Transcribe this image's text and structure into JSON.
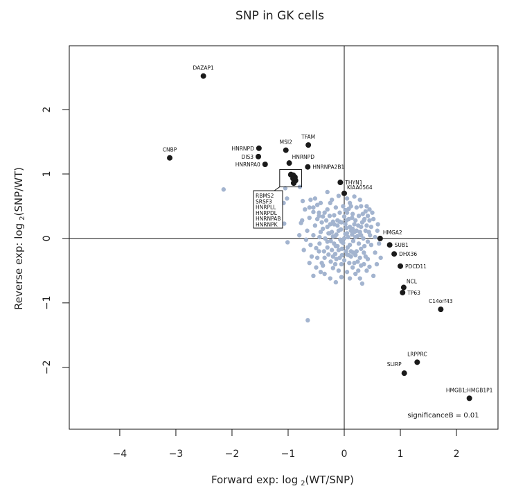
{
  "chart_data": {
    "type": "scatter",
    "title": "SNP in GK cells",
    "xlabel": {
      "main": "Forward exp: log",
      "sub": "2",
      "rest": "(WT/SNP)"
    },
    "ylabel": {
      "main": "Reverse exp: log",
      "sub": "2",
      "rest": "(SNP/WT)"
    },
    "xlim": [
      -4.9,
      2.74
    ],
    "ylim": [
      -2.96,
      2.99
    ],
    "xticks": [
      -4,
      -3,
      -2,
      -1,
      0,
      1,
      2
    ],
    "yticks": [
      -2,
      -1,
      0,
      1,
      2
    ],
    "xtick_labels": [
      "−4",
      "−3",
      "−2",
      "−1",
      "0",
      "1",
      "2"
    ],
    "ytick_labels": [
      "−2",
      "−1",
      "0",
      "1",
      "2"
    ],
    "reference_lines": {
      "x": 0,
      "y": 0
    },
    "annotation": "significanceB = 0.01",
    "colors": {
      "background_points": "#a3b4cf",
      "significant_points": "#1a1a1a",
      "axes": "#111111"
    },
    "significant_points": [
      {
        "label": "DAZAP1",
        "x": -2.51,
        "y": 2.52,
        "label_pos": "above"
      },
      {
        "label": "CNBP",
        "x": -3.11,
        "y": 1.25,
        "label_pos": "above"
      },
      {
        "label": "HNRNPD",
        "x": -1.52,
        "y": 1.4,
        "label_pos": "left"
      },
      {
        "label": "DIS3",
        "x": -1.53,
        "y": 1.27,
        "label_pos": "left"
      },
      {
        "label": "HNRNPA0",
        "x": -1.41,
        "y": 1.15,
        "label_pos": "left"
      },
      {
        "label": "MSI2",
        "x": -1.04,
        "y": 1.37,
        "label_pos": "above"
      },
      {
        "label": "TFAM",
        "x": -0.64,
        "y": 1.45,
        "label_pos": "above"
      },
      {
        "label": "HNRNPD",
        "x": -0.98,
        "y": 1.17,
        "label_pos": "above-right"
      },
      {
        "label": "HNRNPA2B1",
        "x": -0.65,
        "y": 1.11,
        "label_pos": "right"
      },
      {
        "label": "THYN1",
        "x": -0.07,
        "y": 0.87,
        "label_pos": "right"
      },
      {
        "label": "KIAA0564",
        "x": 0.0,
        "y": 0.7,
        "label_pos": "above-right"
      },
      {
        "label": "HMGA2",
        "x": 0.64,
        "y": 0.0,
        "label_pos": "above-right"
      },
      {
        "label": "SUB1",
        "x": 0.81,
        "y": -0.1,
        "label_pos": "right"
      },
      {
        "label": "DHX36",
        "x": 0.89,
        "y": -0.24,
        "label_pos": "right"
      },
      {
        "label": "PDCD11",
        "x": 1.0,
        "y": -0.43,
        "label_pos": "right"
      },
      {
        "label": "NCL",
        "x": 1.06,
        "y": -0.76,
        "label_pos": "above-right"
      },
      {
        "label": "TP63",
        "x": 1.04,
        "y": -0.84,
        "label_pos": "right"
      },
      {
        "label": "C14orf43",
        "x": 1.72,
        "y": -1.1,
        "label_pos": "above"
      },
      {
        "label": "LRPPRC",
        "x": 1.3,
        "y": -1.92,
        "label_pos": "above"
      },
      {
        "label": "SLIRP",
        "x": 1.07,
        "y": -2.09,
        "label_pos": "above-left"
      },
      {
        "label": "HMGB1;HMGB1P1",
        "x": 2.23,
        "y": -2.48,
        "label_pos": "above"
      }
    ],
    "boxed_cluster": {
      "labels": [
        "RBMS2",
        "SRSF3",
        "HNRPLL",
        "HNRPDL",
        "HNRNPAB",
        "HNRNPK"
      ],
      "points": [
        {
          "x": -0.95,
          "y": 0.99
        },
        {
          "x": -0.91,
          "y": 0.98
        },
        {
          "x": -0.88,
          "y": 0.95
        },
        {
          "x": -0.91,
          "y": 0.93
        },
        {
          "x": -0.87,
          "y": 0.9
        },
        {
          "x": -0.9,
          "y": 0.86
        }
      ],
      "box": {
        "x0": -1.15,
        "x1": -0.76,
        "y0": 0.8,
        "y1": 1.07
      }
    },
    "background_points": [
      [
        -2.15,
        0.76
      ],
      [
        -0.65,
        -1.27
      ],
      [
        -1.01,
        -0.06
      ],
      [
        -1.07,
        0.23
      ],
      [
        -0.77,
        0.24
      ],
      [
        -0.74,
        0.58
      ],
      [
        -1.05,
        0.78
      ],
      [
        -0.79,
        0.8
      ],
      [
        0.52,
        -0.58
      ],
      [
        0.59,
        0.12
      ],
      [
        -1.08,
        0.55
      ],
      [
        -1.02,
        0.62
      ],
      [
        -0.62,
        0.48
      ],
      [
        -0.48,
        0.52
      ],
      [
        -0.55,
        0.41
      ],
      [
        -0.45,
        0.35
      ],
      [
        -0.3,
        0.72
      ],
      [
        -0.22,
        0.6
      ],
      [
        0.18,
        0.65
      ],
      [
        0.28,
        0.6
      ],
      [
        0.38,
        0.42
      ],
      [
        0.45,
        0.28
      ],
      [
        0.3,
        -0.42
      ],
      [
        0.42,
        -0.32
      ],
      [
        0.2,
        -0.55
      ],
      [
        -0.35,
        -0.55
      ],
      [
        -0.1,
        -0.5
      ],
      [
        -0.4,
        -0.38
      ],
      [
        0.05,
        -0.52
      ],
      [
        0.25,
        -0.5
      ],
      [
        -0.5,
        -0.15
      ],
      [
        -0.55,
        0.05
      ],
      [
        -0.52,
        0.2
      ],
      [
        -0.42,
        0.1
      ],
      [
        0.48,
        -0.1
      ],
      [
        0.46,
        0.05
      ],
      [
        0.35,
        -0.22
      ],
      [
        -0.3,
        0.45
      ],
      [
        0.1,
        0.55
      ],
      [
        -0.15,
        0.48
      ],
      [
        0.0,
        0.0
      ],
      [
        0.05,
        0.08
      ],
      [
        -0.05,
        -0.05
      ],
      [
        0.1,
        -0.1
      ],
      [
        -0.1,
        0.12
      ],
      [
        0.15,
        0.15
      ],
      [
        -0.15,
        -0.12
      ],
      [
        0.2,
        0.02
      ],
      [
        -0.2,
        0.03
      ],
      [
        0.02,
        0.22
      ],
      [
        0.03,
        -0.2
      ],
      [
        0.25,
        0.2
      ],
      [
        -0.25,
        0.22
      ],
      [
        0.22,
        -0.2
      ],
      [
        -0.22,
        -0.18
      ],
      [
        0.3,
        0.05
      ],
      [
        -0.3,
        -0.05
      ],
      [
        0.08,
        0.3
      ],
      [
        -0.08,
        -0.3
      ],
      [
        0.12,
        -0.28
      ],
      [
        -0.12,
        0.28
      ],
      [
        0.32,
        0.25
      ],
      [
        -0.32,
        0.28
      ],
      [
        0.28,
        -0.3
      ],
      [
        -0.28,
        -0.25
      ],
      [
        0.38,
        0.12
      ],
      [
        -0.38,
        0.15
      ],
      [
        0.36,
        -0.12
      ],
      [
        -0.36,
        -0.2
      ],
      [
        0.15,
        0.38
      ],
      [
        -0.18,
        0.36
      ],
      [
        0.18,
        -0.38
      ],
      [
        -0.16,
        -0.4
      ],
      [
        0.4,
        0.2
      ],
      [
        -0.4,
        0.25
      ],
      [
        0.05,
        0.4
      ],
      [
        -0.05,
        -0.4
      ],
      [
        0.26,
        0.35
      ],
      [
        -0.26,
        0.35
      ],
      [
        0.24,
        -0.36
      ],
      [
        -0.24,
        -0.36
      ],
      [
        0.1,
        0.18
      ],
      [
        -0.1,
        -0.18
      ],
      [
        0.18,
        0.1
      ],
      [
        -0.18,
        -0.08
      ],
      [
        0.06,
        -0.14
      ],
      [
        -0.06,
        0.14
      ],
      [
        0.14,
        0.06
      ],
      [
        -0.14,
        0.06
      ],
      [
        0.22,
        0.12
      ],
      [
        -0.22,
        0.1
      ],
      [
        0.12,
        -0.2
      ],
      [
        -0.12,
        0.2
      ],
      [
        0.28,
        0.1
      ],
      [
        -0.28,
        0.08
      ],
      [
        0.04,
        0.28
      ],
      [
        -0.04,
        -0.26
      ],
      [
        0.34,
        0.0
      ],
      [
        -0.34,
        0.0
      ],
      [
        0.0,
        0.34
      ],
      [
        0.0,
        -0.34
      ],
      [
        0.2,
        0.28
      ],
      [
        -0.2,
        0.26
      ],
      [
        0.2,
        -0.26
      ],
      [
        -0.2,
        -0.28
      ],
      [
        0.42,
        -0.05
      ],
      [
        -0.44,
        -0.08
      ],
      [
        0.08,
        0.46
      ],
      [
        -0.02,
        0.5
      ],
      [
        0.12,
        0.5
      ],
      [
        -0.35,
        0.4
      ],
      [
        0.33,
        0.38
      ],
      [
        -0.45,
        0.4
      ],
      [
        0.42,
        0.35
      ],
      [
        0.35,
        -0.4
      ],
      [
        -0.38,
        -0.42
      ],
      [
        0.15,
        -0.45
      ],
      [
        -0.2,
        -0.46
      ],
      [
        -0.48,
        0.3
      ],
      [
        0.48,
        0.18
      ],
      [
        -0.58,
        -0.28
      ],
      [
        -0.62,
        0.32
      ],
      [
        -0.66,
        0.12
      ],
      [
        -0.6,
        -0.1
      ],
      [
        0.55,
        -0.22
      ],
      [
        0.52,
        0.3
      ],
      [
        0.4,
        -0.5
      ],
      [
        -0.5,
        -0.45
      ],
      [
        0.55,
        0.02
      ],
      [
        -0.68,
        -0.02
      ],
      [
        0.07,
        0.02
      ],
      [
        -0.07,
        -0.02
      ],
      [
        0.02,
        0.07
      ],
      [
        -0.02,
        -0.07
      ],
      [
        0.12,
        0.12
      ],
      [
        -0.12,
        -0.12
      ],
      [
        0.16,
        -0.04
      ],
      [
        -0.16,
        0.04
      ],
      [
        0.04,
        0.16
      ],
      [
        -0.04,
        -0.16
      ],
      [
        0.26,
        -0.08
      ],
      [
        -0.26,
        0.08
      ],
      [
        0.08,
        -0.26
      ],
      [
        -0.08,
        0.26
      ],
      [
        0.3,
        0.18
      ],
      [
        -0.3,
        0.18
      ],
      [
        0.3,
        -0.16
      ],
      [
        -0.3,
        -0.14
      ],
      [
        0.18,
        0.22
      ],
      [
        -0.18,
        0.22
      ],
      [
        0.16,
        -0.22
      ],
      [
        -0.16,
        -0.24
      ],
      [
        0.36,
        0.3
      ],
      [
        -0.08,
        0.4
      ],
      [
        0.09,
        -0.38
      ],
      [
        0.38,
        -0.28
      ],
      [
        -0.38,
        0.34
      ],
      [
        0.44,
        0.1
      ],
      [
        -0.44,
        0.02
      ],
      [
        0.02,
        0.44
      ],
      [
        -0.55,
        0.48
      ],
      [
        -0.6,
        0.6
      ],
      [
        -0.52,
        0.62
      ],
      [
        0.05,
        0.62
      ],
      [
        -0.1,
        0.66
      ],
      [
        0.22,
        0.48
      ],
      [
        0.3,
        0.5
      ],
      [
        -0.42,
        0.55
      ],
      [
        -0.25,
        0.55
      ],
      [
        0.4,
        0.5
      ],
      [
        -0.62,
        -0.38
      ],
      [
        -0.55,
        -0.58
      ],
      [
        -0.42,
        -0.52
      ],
      [
        0.1,
        -0.62
      ],
      [
        -0.05,
        -0.6
      ],
      [
        0.28,
        -0.62
      ],
      [
        0.45,
        -0.44
      ],
      [
        -0.25,
        -0.62
      ],
      [
        0.32,
        -0.7
      ],
      [
        -0.15,
        -0.68
      ],
      [
        -0.7,
        0.45
      ],
      [
        -0.75,
        0.28
      ],
      [
        -0.72,
        -0.18
      ],
      [
        0.62,
        -0.08
      ],
      [
        0.6,
        0.22
      ],
      [
        0.65,
        -0.3
      ],
      [
        -0.8,
        0.05
      ],
      [
        0.5,
        0.4
      ],
      [
        -0.48,
        -0.3
      ],
      [
        0.58,
        -0.4
      ],
      [
        -0.35,
        -0.3
      ],
      [
        0.35,
        0.28
      ],
      [
        0.45,
        0.45
      ],
      [
        -0.45,
        -0.2
      ],
      [
        -0.05,
        0.25
      ],
      [
        0.05,
        -0.25
      ],
      [
        0.24,
        0.04
      ],
      [
        -0.24,
        -0.04
      ],
      [
        0.14,
        0.32
      ],
      [
        -0.14,
        -0.32
      ]
    ]
  }
}
